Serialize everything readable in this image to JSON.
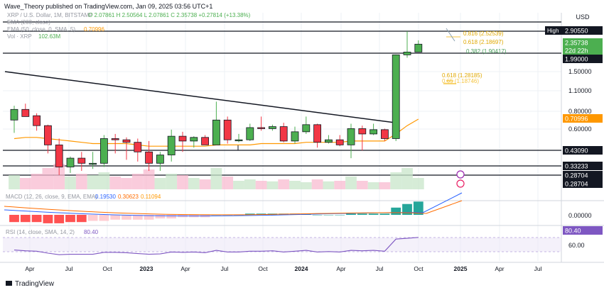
{
  "header": {
    "published": "Wave_Theory published on TradingView.com, Jan 09, 2025 03:56 UTC+1"
  },
  "legend": {
    "symbol": "XRP / U.S. Dollar, 1M, BITSTAMP",
    "ohlc": "O 2.07861  H 2.50564  L 2.07861  C 2.35738  +0.27814 (+13.38%)",
    "ema200": "EMA (200, close)",
    "ema50": "EMA (50, close, 0, SMA, 5)",
    "ema50_value": "0.70996",
    "vol": "Vol · XRP",
    "vol_value": "102.63M"
  },
  "fib": {
    "f1": "0.618 (1.28185)",
    "f2": "0.65 (1.18746)",
    "f3": "0.816 (2.52539)",
    "f4": "0.618 (2.18697)",
    "f5": "0.382 (1.90417)"
  },
  "axis": {
    "currency": "USD",
    "price_ticks": [
      "1.50000",
      "1.10000",
      "0.80000",
      "0.60000"
    ],
    "macd_tick": "0.00000",
    "rsi_tick": "60.00"
  },
  "price_labels": {
    "high": "High",
    "high_value": "2.90550",
    "last": "2.35738",
    "countdown": "22d 22h",
    "l199": "1.99000",
    "ema_val": "0.70996",
    "l043": "0.43090",
    "l0332": "0.33233",
    "l0287a": "0.28704",
    "l0287b": "0.28704"
  },
  "macd": {
    "title": "MACD (12, 26, close, 9, EMA, EMA)",
    "v1": "0.19530",
    "v2": "0.30623",
    "v3": "0.11094"
  },
  "rsi": {
    "title": "RSI (14, close, SMA, 14, 2)",
    "value": "80.40",
    "label": "80.40"
  },
  "time_labels": [
    "Apr",
    "Jul",
    "Oct",
    "2023",
    "Apr",
    "Jul",
    "Oct",
    "2024",
    "Apr",
    "Jul",
    "Oct",
    "2025",
    "Apr",
    "Jul"
  ],
  "footer": {
    "brand": "TradingView"
  },
  "colors": {
    "up": "#4caf50",
    "down": "#f23645",
    "ema50": "#ff9800",
    "fib": "#f5c542",
    "macd_line": "#2962ff",
    "signal_line": "#ff6d00",
    "rsi": "#7e57c2"
  },
  "chart_data": {
    "type": "candlestick",
    "title": "XRP / U.S. Dollar, 1M, BITSTAMP",
    "scale": "log",
    "candles": [
      {
        "o": 0.7,
        "h": 0.88,
        "l": 0.57,
        "c": 0.83
      },
      {
        "o": 0.83,
        "h": 0.91,
        "l": 0.75,
        "c": 0.74
      },
      {
        "o": 0.75,
        "h": 0.78,
        "l": 0.59,
        "c": 0.64
      },
      {
        "o": 0.64,
        "h": 0.65,
        "l": 0.41,
        "c": 0.47
      },
      {
        "o": 0.47,
        "h": 0.52,
        "l": 0.29,
        "c": 0.33
      },
      {
        "o": 0.33,
        "h": 0.39,
        "l": 0.3,
        "c": 0.38
      },
      {
        "o": 0.38,
        "h": 0.42,
        "l": 0.31,
        "c": 0.35
      },
      {
        "o": 0.35,
        "h": 0.42,
        "l": 0.32,
        "c": 0.35
      },
      {
        "o": 0.35,
        "h": 0.55,
        "l": 0.33,
        "c": 0.52
      },
      {
        "o": 0.52,
        "h": 0.56,
        "l": 0.41,
        "c": 0.51
      },
      {
        "o": 0.51,
        "h": 0.53,
        "l": 0.37,
        "c": 0.49
      },
      {
        "o": 0.49,
        "h": 0.52,
        "l": 0.36,
        "c": 0.42
      },
      {
        "o": 0.42,
        "h": 0.5,
        "l": 0.31,
        "c": 0.35
      },
      {
        "o": 0.35,
        "h": 0.42,
        "l": 0.31,
        "c": 0.4
      },
      {
        "o": 0.4,
        "h": 0.6,
        "l": 0.36,
        "c": 0.54
      },
      {
        "o": 0.54,
        "h": 0.58,
        "l": 0.42,
        "c": 0.5
      },
      {
        "o": 0.5,
        "h": 0.54,
        "l": 0.45,
        "c": 0.53
      },
      {
        "o": 0.53,
        "h": 0.55,
        "l": 0.47,
        "c": 0.47
      },
      {
        "o": 0.47,
        "h": 0.94,
        "l": 0.47,
        "c": 0.7
      },
      {
        "o": 0.7,
        "h": 0.74,
        "l": 0.48,
        "c": 0.51
      },
      {
        "o": 0.51,
        "h": 0.56,
        "l": 0.49,
        "c": 0.51
      },
      {
        "o": 0.51,
        "h": 0.66,
        "l": 0.5,
        "c": 0.62
      },
      {
        "o": 0.62,
        "h": 0.74,
        "l": 0.59,
        "c": 0.61
      },
      {
        "o": 0.61,
        "h": 0.65,
        "l": 0.59,
        "c": 0.63
      },
      {
        "o": 0.63,
        "h": 0.67,
        "l": 0.49,
        "c": 0.5
      },
      {
        "o": 0.5,
        "h": 0.63,
        "l": 0.48,
        "c": 0.58
      },
      {
        "o": 0.58,
        "h": 0.74,
        "l": 0.56,
        "c": 0.65
      },
      {
        "o": 0.65,
        "h": 0.66,
        "l": 0.45,
        "c": 0.49
      },
      {
        "o": 0.49,
        "h": 0.55,
        "l": 0.48,
        "c": 0.51
      },
      {
        "o": 0.51,
        "h": 0.55,
        "l": 0.46,
        "c": 0.47
      },
      {
        "o": 0.47,
        "h": 0.66,
        "l": 0.38,
        "c": 0.61
      },
      {
        "o": 0.61,
        "h": 0.64,
        "l": 0.43,
        "c": 0.56
      },
      {
        "o": 0.56,
        "h": 0.66,
        "l": 0.55,
        "c": 0.6
      },
      {
        "o": 0.6,
        "h": 0.61,
        "l": 0.5,
        "c": 0.52
      },
      {
        "o": 0.52,
        "h": 2.0,
        "l": 0.5,
        "c": 1.99
      },
      {
        "o": 1.99,
        "h": 2.9,
        "l": 1.9,
        "c": 2.08
      },
      {
        "o": 2.08,
        "h": 2.51,
        "l": 2.08,
        "c": 2.36
      }
    ],
    "volume": [
      0.5,
      0.4,
      0.55,
      0.75,
      0.9,
      0.45,
      0.55,
      0.5,
      0.6,
      0.45,
      0.4,
      0.55,
      0.7,
      0.4,
      0.55,
      0.5,
      0.4,
      0.35,
      0.75,
      0.45,
      0.3,
      0.35,
      0.3,
      0.28,
      0.35,
      0.3,
      0.25,
      0.35,
      0.28,
      0.3,
      0.45,
      0.3,
      0.25,
      0.25,
      0.6,
      0.75,
      0.4
    ],
    "ema50": [
      0.52,
      0.53,
      0.53,
      0.52,
      0.51,
      0.5,
      0.49,
      0.48,
      0.48,
      0.48,
      0.48,
      0.47,
      0.46,
      0.46,
      0.46,
      0.46,
      0.46,
      0.46,
      0.47,
      0.47,
      0.47,
      0.47,
      0.48,
      0.48,
      0.48,
      0.48,
      0.49,
      0.49,
      0.49,
      0.49,
      0.5,
      0.5,
      0.5,
      0.5,
      0.56,
      0.64,
      0.71
    ],
    "rsi": [
      48,
      46,
      45,
      40,
      36,
      37,
      37,
      37,
      42,
      42,
      41,
      39,
      37,
      38,
      43,
      42,
      43,
      41,
      47,
      43,
      43,
      45,
      45,
      46,
      43,
      45,
      47,
      43,
      44,
      43,
      47,
      46,
      47,
      45,
      76,
      78,
      80.4
    ],
    "macd_hist": [
      -0.06,
      -0.06,
      -0.06,
      -0.07,
      -0.07,
      -0.06,
      -0.06,
      -0.05,
      -0.05,
      -0.04,
      -0.04,
      -0.04,
      -0.04,
      -0.03,
      -0.03,
      -0.02,
      -0.02,
      -0.02,
      0.0,
      0.0,
      0.0,
      0.01,
      0.01,
      0.01,
      0.01,
      0.01,
      0.01,
      0.0,
      0.0,
      0.0,
      0.01,
      0.01,
      0.01,
      0.01,
      0.06,
      0.09,
      0.11
    ]
  }
}
